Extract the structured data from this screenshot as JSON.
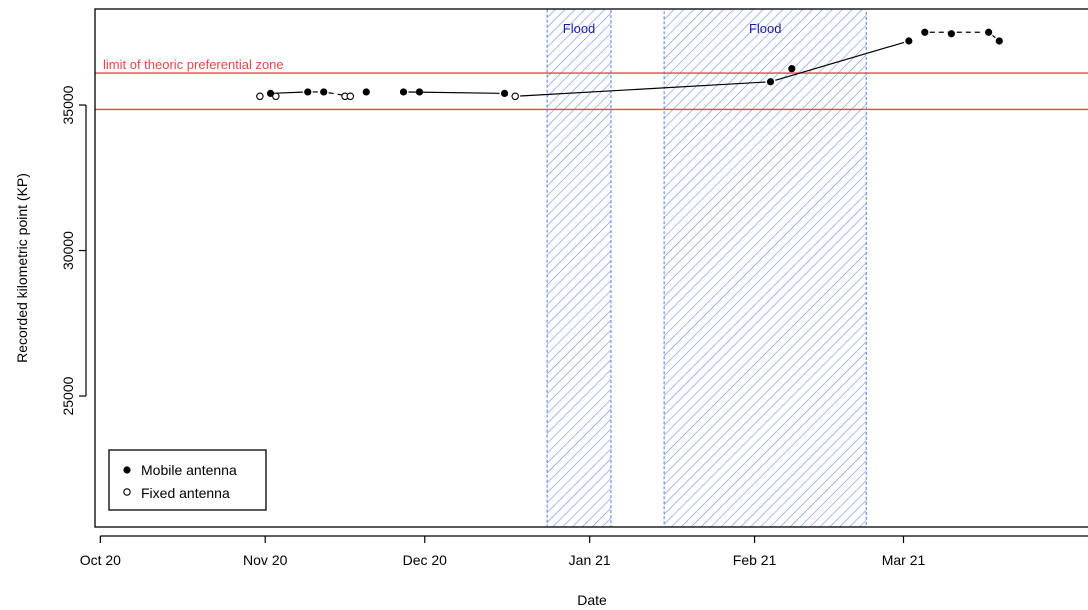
{
  "chart_data": {
    "type": "scatter",
    "title": "",
    "xlabel": "Date",
    "ylabel": "Recorded kilometric point (KP)",
    "x_tick_labels": [
      "Oct 20",
      "Nov 20",
      "Dec 20",
      "Jan 21",
      "Feb 21",
      "Mar 21"
    ],
    "y_tick_labels": [
      "25000",
      "30000",
      "35000"
    ],
    "x_ticks": [
      "2020-10-01",
      "2020-11-01",
      "2020-12-01",
      "2021-01-01",
      "2021-02-01",
      "2021-03-01"
    ],
    "y_ticks": [
      25000,
      30000,
      35000
    ],
    "xlim": [
      "2020-09-30",
      "2021-04-06"
    ],
    "ylim": [
      20500,
      38300
    ],
    "grid": false,
    "legend_position": "bottom-left",
    "series": [
      {
        "name": "Mobile antenna",
        "marker": "filled-circle",
        "points": [
          {
            "x": "2020-11-02",
            "y": 35400
          },
          {
            "x": "2020-11-09",
            "y": 35450
          },
          {
            "x": "2020-11-12",
            "y": 35450
          },
          {
            "x": "2020-11-20",
            "y": 35450
          },
          {
            "x": "2020-11-27",
            "y": 35450
          },
          {
            "x": "2020-11-30",
            "y": 35450
          },
          {
            "x": "2020-12-16",
            "y": 35400
          },
          {
            "x": "2021-02-04",
            "y": 35800
          },
          {
            "x": "2021-02-08",
            "y": 36250
          },
          {
            "x": "2021-03-02",
            "y": 37200
          },
          {
            "x": "2021-03-05",
            "y": 37500
          },
          {
            "x": "2021-03-10",
            "y": 37450
          },
          {
            "x": "2021-03-17",
            "y": 37500
          },
          {
            "x": "2021-03-19",
            "y": 37200
          }
        ]
      },
      {
        "name": "Fixed antenna",
        "marker": "open-circle",
        "points": [
          {
            "x": "2020-10-31",
            "y": 35300
          },
          {
            "x": "2020-11-03",
            "y": 35300
          },
          {
            "x": "2020-11-16",
            "y": 35300
          },
          {
            "x": "2020-11-17",
            "y": 35300
          },
          {
            "x": "2020-12-18",
            "y": 35300
          }
        ]
      }
    ],
    "connected_segments": [
      {
        "from": "2020-11-02",
        "to": "2020-11-09",
        "style": "solid"
      },
      {
        "from": "2020-11-09",
        "to": "2020-11-12",
        "style": "dashed"
      },
      {
        "from": "2020-11-12",
        "to": "2020-11-17",
        "style": "dashed"
      },
      {
        "from": "2020-11-27",
        "to": "2020-12-16",
        "style": "solid"
      },
      {
        "from": "2020-12-18",
        "to": "2021-02-04",
        "style": "solid"
      },
      {
        "from": "2021-02-04",
        "to": "2021-03-02",
        "style": "solid"
      },
      {
        "from": "2021-03-05",
        "to": "2021-03-17",
        "style": "dashed"
      },
      {
        "from": "2021-03-17",
        "to": "2021-03-19",
        "style": "solid"
      }
    ],
    "horizontal_lines": [
      {
        "y": 36100,
        "color": "#e8474a"
      },
      {
        "y": 34850,
        "color": "#e8474a"
      }
    ],
    "hline_label": "limit of theoric preferential zone",
    "shaded_regions": [
      {
        "x_start": "2020-12-24",
        "x_end": "2021-01-05",
        "label": "Flood",
        "pattern": "diagonal-hatch"
      },
      {
        "x_start": "2021-01-15",
        "x_end": "2021-02-22",
        "label": "Flood",
        "pattern": "diagonal-hatch"
      }
    ],
    "colors": {
      "limit_line": "#e8474a",
      "flood_fill": "#6e8ff0",
      "flood_label": "#1a1aa8",
      "axis": "#000000"
    }
  }
}
